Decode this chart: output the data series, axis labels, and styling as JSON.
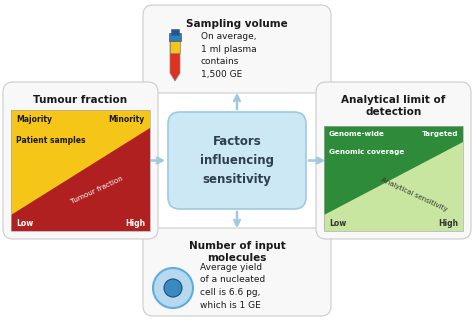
{
  "title": "Factors\ninfluencing\nsensitivity",
  "center_box_color": "#cde8f5",
  "center_box_edge": "#a0c8e0",
  "arrow_color": "#a0c8e0",
  "bg_color": "#ffffff",
  "top_box": {
    "title": "Sampling volume",
    "text": "On average,\n1 ml plasma\ncontains\n1,500 GE",
    "box_color": "#f8f8f8",
    "box_edge": "#cccccc"
  },
  "bottom_box": {
    "title": "Number of input\nmolecules",
    "text": "Average yield\nof a nucleated\ncell is 6.6 pg,\nwhich is 1 GE",
    "box_color": "#f8f8f8",
    "box_edge": "#cccccc"
  },
  "left_box": {
    "title": "Tumour fraction",
    "box_color": "#f8f8f8",
    "box_edge": "#cccccc",
    "label_majority": "Majority",
    "label_minority": "Minority",
    "label_patient": "Patient samples",
    "label_tumour": "Tumour fraction",
    "label_low": "Low",
    "label_high": "High",
    "color_yellow": "#f5c518",
    "color_red_dark": "#b02020",
    "color_red_mid": "#cc3333"
  },
  "right_box": {
    "title": "Analytical limit of\ndetection",
    "box_color": "#f8f8f8",
    "box_edge": "#cccccc",
    "label_genome": "Genome-wide",
    "label_targeted": "Targeted",
    "label_coverage": "Genomic coverage",
    "label_sensitivity": "Analytical sensitivity",
    "label_low": "Low",
    "label_high": "High",
    "color_dark_green": "#2e8b3a",
    "color_mid_green": "#5cb85c",
    "color_light_green": "#c8e6a0",
    "color_strip_green": "#3a9a4a"
  }
}
